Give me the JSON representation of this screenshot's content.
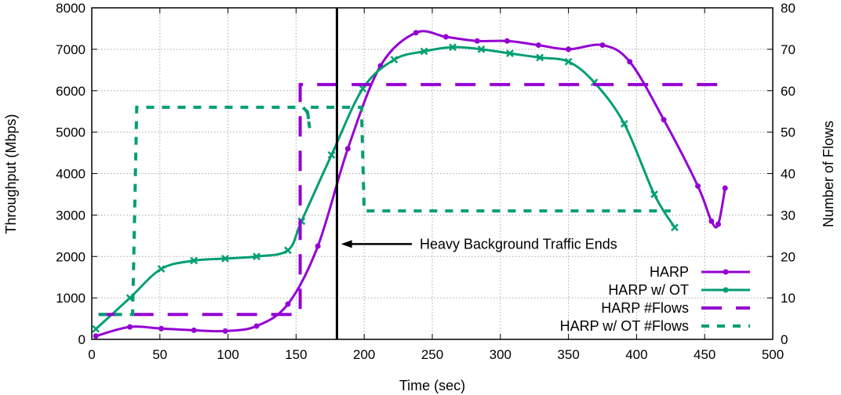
{
  "chart_data": {
    "type": "line",
    "xlabel": "Time (sec)",
    "ylabel": "Throughput (Mbps)",
    "y2label": "Number of Flows",
    "xlim": [
      0,
      500
    ],
    "ylim": [
      0,
      8000
    ],
    "y2lim": [
      0,
      80
    ],
    "xticks": [
      0,
      50,
      100,
      150,
      200,
      250,
      300,
      350,
      400,
      450,
      500
    ],
    "yticks": [
      0,
      1000,
      2000,
      3000,
      4000,
      5000,
      6000,
      7000,
      8000
    ],
    "y2ticks": [
      0,
      10,
      20,
      30,
      40,
      50,
      60,
      70,
      80
    ],
    "grid": true,
    "legend": "bottom-right",
    "colors": {
      "harp": "#9400d3",
      "ot": "#009e73"
    },
    "series": [
      {
        "name": "HARP",
        "axis": "y",
        "style": "line-points",
        "x": [
          3,
          28,
          51,
          75,
          98,
          121,
          144,
          166,
          188,
          212,
          238,
          260,
          283,
          305,
          328,
          350,
          375,
          395,
          420,
          445,
          455,
          460,
          465
        ],
        "y": [
          80,
          300,
          260,
          220,
          200,
          320,
          850,
          2250,
          4600,
          6600,
          7400,
          7300,
          7200,
          7200,
          7100,
          7000,
          7100,
          6700,
          5300,
          3700,
          2850,
          2780,
          3650
        ]
      },
      {
        "name": "HARP w/ OT",
        "axis": "y",
        "style": "line-points",
        "x": [
          3,
          28,
          51,
          75,
          98,
          121,
          144,
          154,
          176,
          199,
          222,
          244,
          265,
          286,
          307,
          329,
          350,
          369,
          391,
          413,
          428
        ],
        "y": [
          250,
          1000,
          1700,
          1900,
          1950,
          2000,
          2150,
          2850,
          4450,
          6050,
          6750,
          6950,
          7050,
          7000,
          6900,
          6800,
          6700,
          6200,
          5200,
          3500,
          2700
        ]
      },
      {
        "name": "HARP #Flows",
        "axis": "y2",
        "style": "dashed",
        "x": [
          5,
          150,
          153,
          153,
          462
        ],
        "y": [
          6,
          6,
          6,
          61.5,
          61.5
        ]
      },
      {
        "name": "HARP w/ OT #Flows",
        "axis": "y2",
        "style": "dotted",
        "x": [
          5,
          30,
          33,
          155,
          158,
          160,
          158,
          198,
          200,
          425
        ],
        "y": [
          6,
          6,
          56,
          56,
          55,
          51,
          56,
          56,
          31,
          31
        ]
      }
    ],
    "annotations": [
      {
        "type": "vline",
        "x": 180
      },
      {
        "text": "Heavy Background Traffic Ends",
        "arrow_from": [
          235,
          2300
        ],
        "arrow_to": [
          183,
          2300
        ]
      }
    ]
  }
}
